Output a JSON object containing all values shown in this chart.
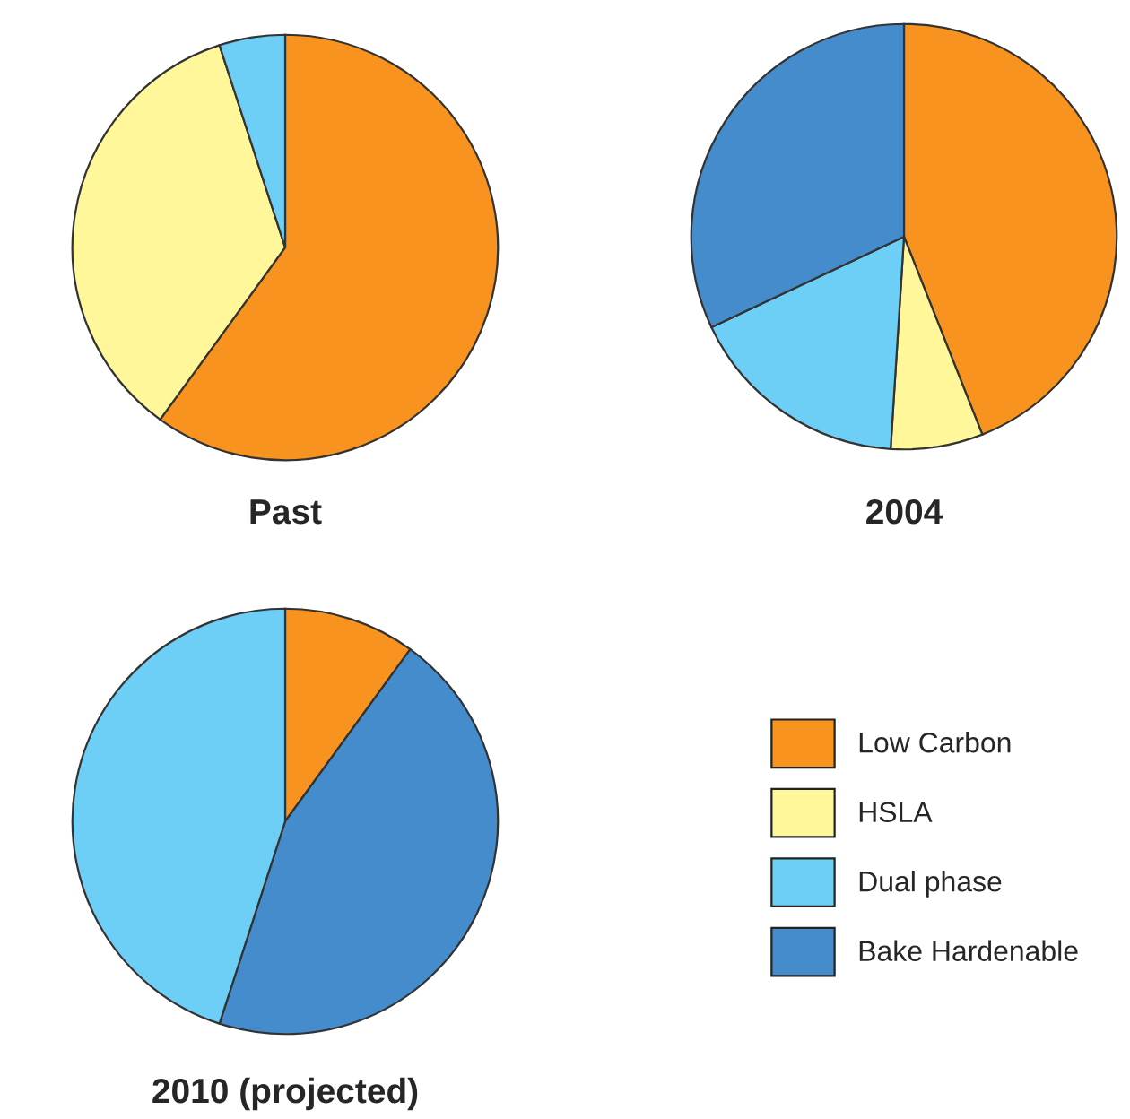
{
  "chart_data": [
    {
      "type": "pie",
      "title": "Past",
      "categories": [
        null,
        null,
        null
      ],
      "values": [
        60,
        35,
        5
      ],
      "colors": [
        "#f7931e",
        "#fff799",
        "#6dcff6"
      ]
    },
    {
      "type": "pie",
      "title": "2004",
      "categories": [
        "Low Carbon",
        "HSLA",
        "Dual phase",
        "Bake Hardenable"
      ],
      "values": [
        44,
        7,
        17,
        32
      ],
      "colors": [
        "#f7931e",
        "#fff799",
        "#6dcff6",
        "#448ccb"
      ],
      "legend": "bottom"
    },
    {
      "type": "pie",
      "title": "2010 (projected)",
      "categories": [
        null,
        null,
        null
      ],
      "values": [
        10,
        45,
        45
      ],
      "colors": [
        "#f7931e",
        "#448ccb",
        "#6dcff6"
      ]
    }
  ]
}
